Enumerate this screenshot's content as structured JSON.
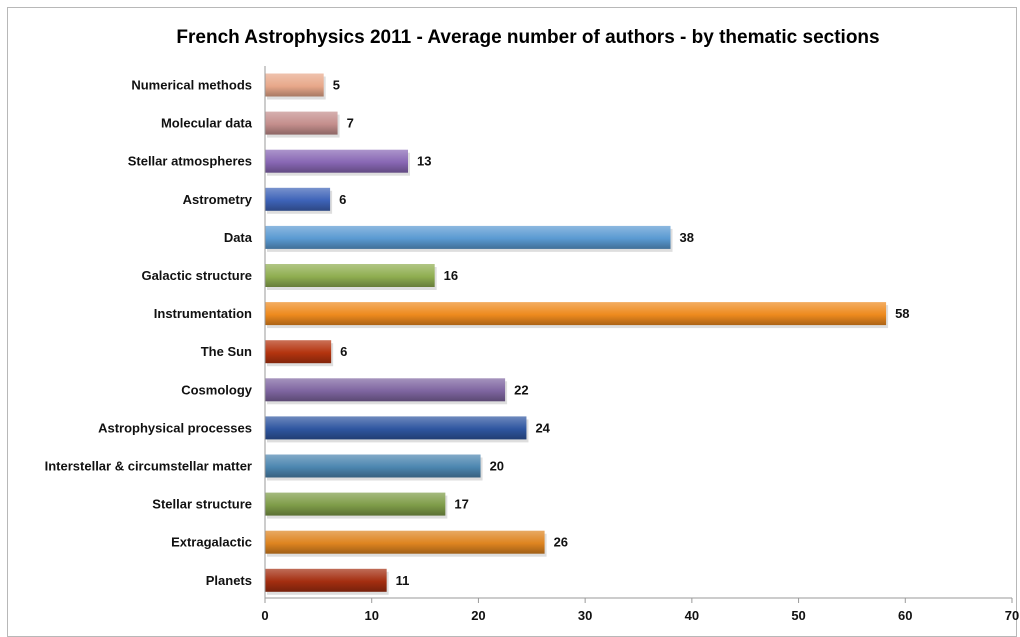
{
  "chart_data": {
    "type": "bar",
    "orientation": "horizontal",
    "title": "French Astrophysics 2011 - Average number of authors - by thematic sections",
    "xlabel": "",
    "ylabel": "",
    "xlim": [
      0,
      70
    ],
    "x_ticks": [
      "0",
      "10",
      "20",
      "30",
      "40",
      "50",
      "60",
      "70"
    ],
    "grid": false,
    "legend": "none",
    "categories": [
      "Numerical methods",
      "Molecular data",
      "Stellar atmospheres",
      "Astrometry",
      "Data",
      "Galactic structure",
      "Instrumentation",
      "The Sun",
      "Cosmology",
      "Astrophysical processes",
      "Interstellar & circumstellar matter",
      "Stellar structure",
      "Extragalactic",
      "Planets"
    ],
    "values": [
      5.5,
      6.8,
      13.4,
      6.1,
      38.0,
      15.9,
      58.2,
      6.2,
      22.5,
      24.5,
      20.2,
      16.9,
      26.2,
      11.4
    ],
    "value_labels": [
      "5",
      "7",
      "13",
      "6",
      "38",
      "16",
      "58",
      "6",
      "22",
      "24",
      "20",
      "17",
      "26",
      "11"
    ],
    "colors": [
      "#e8a88a",
      "#c48e8c",
      "#8867b4",
      "#3e63b8",
      "#5a9ad2",
      "#8fae50",
      "#ee8a1e",
      "#b4340f",
      "#7e65a0",
      "#2f56a0",
      "#4c86b0",
      "#7e9c48",
      "#de8420",
      "#a42e10"
    ]
  }
}
